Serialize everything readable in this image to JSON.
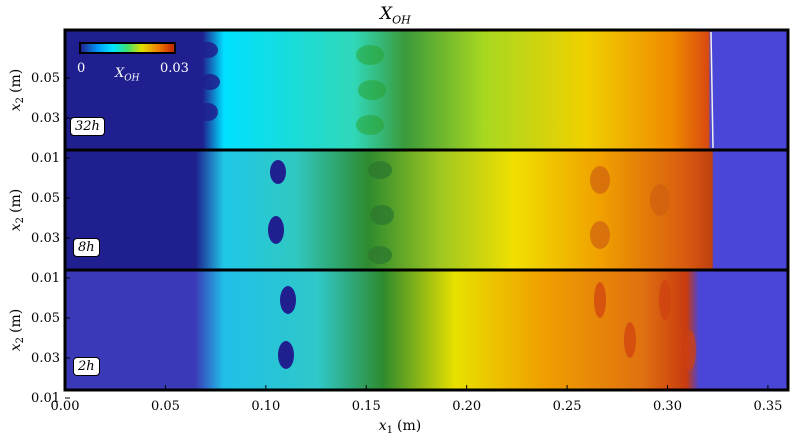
{
  "figure": {
    "title": "X",
    "title_sub": "OH"
  },
  "axes": {
    "xlabel": "x",
    "xlabel_sub": "1",
    "xlabel_unit": "(m)",
    "ylabel": "x",
    "ylabel_sub": "2",
    "ylabel_unit": "(m)",
    "xticks": [
      "0.00",
      "0.05",
      "0.10",
      "0.15",
      "0.20",
      "0.25",
      "0.30",
      "0.35"
    ],
    "yticks": [
      "0.05",
      "0.03",
      "0.01"
    ]
  },
  "colorbar": {
    "min_label": "0",
    "max_label": "0.03",
    "var_label": "X",
    "var_sub": "OH"
  },
  "panels": [
    {
      "case": "32h"
    },
    {
      "case": "8h"
    },
    {
      "case": "2h"
    }
  ],
  "colors": {
    "unburnt": "#4a46d8",
    "background_dark": "#1f1f8f",
    "low": "#00e0ff",
    "mid": "#2e8b2e",
    "high_yellow": "#f0e000",
    "high_orange": "#f58a00",
    "peak": "#c83a10"
  }
}
